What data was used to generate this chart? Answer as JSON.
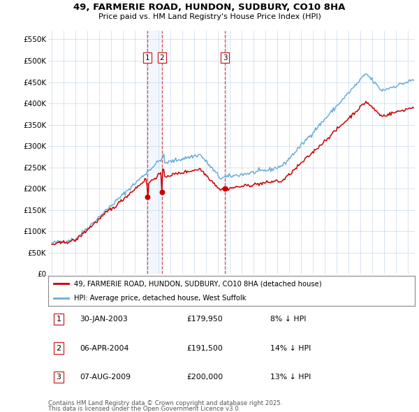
{
  "title": "49, FARMERIE ROAD, HUNDON, SUDBURY, CO10 8HA",
  "subtitle": "Price paid vs. HM Land Registry's House Price Index (HPI)",
  "legend_line1": "49, FARMERIE ROAD, HUNDON, SUDBURY, CO10 8HA (detached house)",
  "legend_line2": "HPI: Average price, detached house, West Suffolk",
  "footnote1": "Contains HM Land Registry data © Crown copyright and database right 2025.",
  "footnote2": "This data is licensed under the Open Government Licence v3.0.",
  "transactions": [
    {
      "label": "1",
      "date": "30-JAN-2003",
      "price": "£179,950",
      "pct": "8% ↓ HPI",
      "x_year": 2003.08
    },
    {
      "label": "2",
      "date": "06-APR-2004",
      "price": "£191,500",
      "pct": "14% ↓ HPI",
      "x_year": 2004.27
    },
    {
      "label": "3",
      "date": "07-AUG-2009",
      "price": "£200,000",
      "pct": "13% ↓ HPI",
      "x_year": 2009.6
    }
  ],
  "hpi_color": "#6baed6",
  "price_color": "#cc0000",
  "shade_color": "#ddeeff",
  "background_color": "#ffffff",
  "grid_color": "#c8d8e8",
  "vline_color": "#cc2222",
  "ylim": [
    0,
    570000
  ],
  "xlim": [
    1994.7,
    2025.6
  ],
  "yticks": [
    0,
    50000,
    100000,
    150000,
    200000,
    250000,
    300000,
    350000,
    400000,
    450000,
    500000,
    550000
  ],
  "ytick_labels": [
    "£0",
    "£50K",
    "£100K",
    "£150K",
    "£200K",
    "£250K",
    "£300K",
    "£350K",
    "£400K",
    "£450K",
    "£500K",
    "£550K"
  ],
  "xticks": [
    1995,
    1996,
    1997,
    1998,
    1999,
    2000,
    2001,
    2002,
    2003,
    2004,
    2005,
    2006,
    2007,
    2008,
    2009,
    2010,
    2011,
    2012,
    2013,
    2014,
    2015,
    2016,
    2017,
    2018,
    2019,
    2020,
    2021,
    2022,
    2023,
    2024,
    2025
  ]
}
